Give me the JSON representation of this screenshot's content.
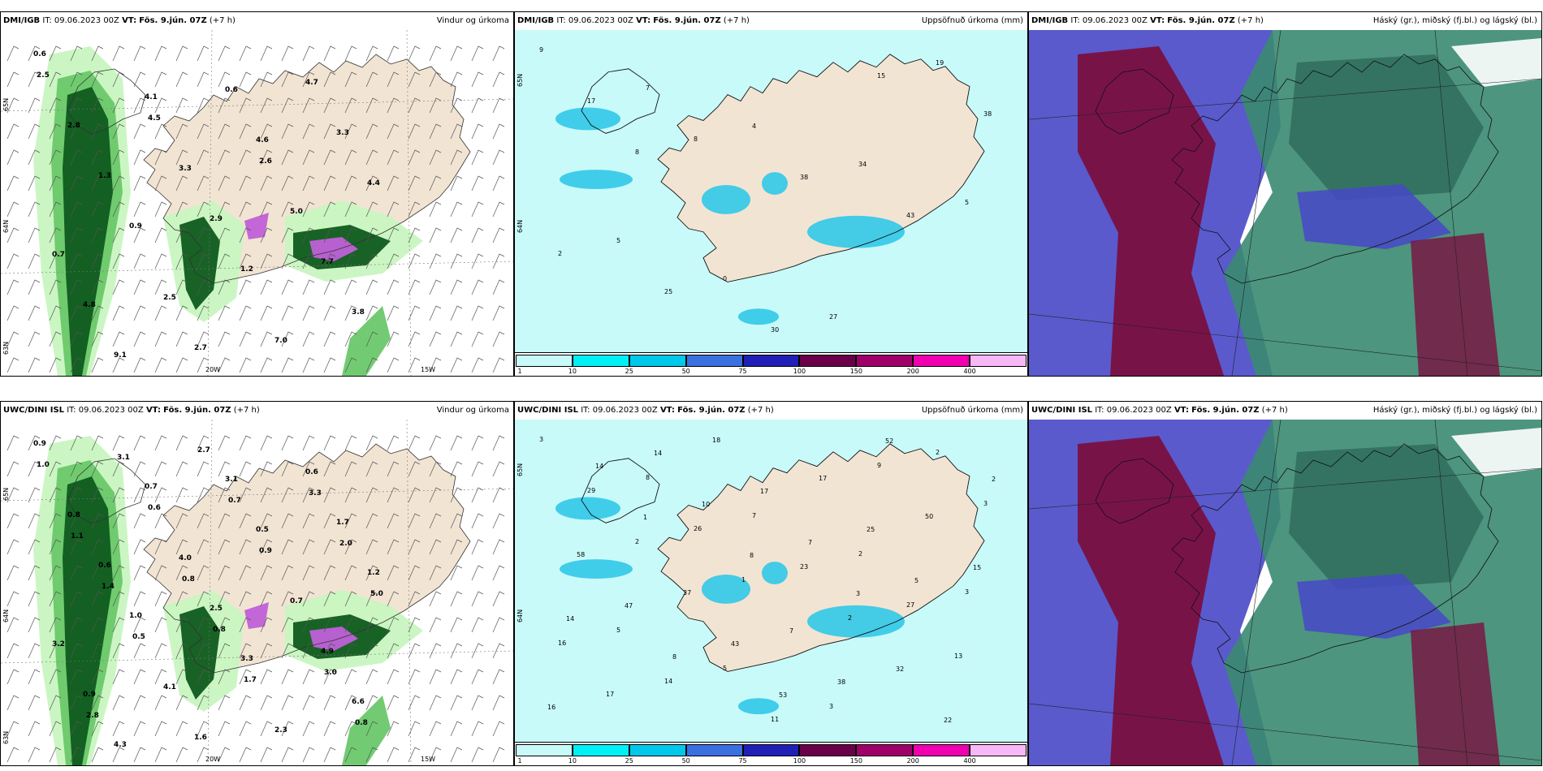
{
  "panels": [
    {
      "model": "DMI/IGB",
      "it": "IT: 09.06.2023 00Z",
      "vt_label": "VT:",
      "vt_value": "Fös. 9.jún. 07Z",
      "lead": "(+7 h)",
      "right_title": "Vindur og úrkoma",
      "type": "wind",
      "values": [
        "0.6",
        "4.1",
        "4.6",
        "4.4",
        "0.9",
        "1.2",
        "3.8",
        "9.1",
        "0.6",
        "3.3",
        "1.3",
        "2.9",
        "7.7",
        "4.8",
        "2.7",
        "4.7",
        "2.8",
        "3.3",
        "5.0",
        "0.7",
        "2.5",
        "7.0",
        "2.5",
        "4.5",
        "2.6"
      ],
      "lat_labels": [
        "65N",
        "64N",
        "63N"
      ],
      "lon_labels": [
        "20W",
        "15W"
      ]
    },
    {
      "model": "DMI/IGB",
      "it": "IT: 09.06.2023 00Z",
      "vt_label": "VT:",
      "vt_value": "Fös. 9.jún. 07Z",
      "lead": "(+7 h)",
      "right_title": "Uppsöfnuð úrkoma (mm)",
      "type": "precip",
      "values": [
        "9",
        "7",
        "4",
        "34",
        "5",
        "5",
        "0",
        "27",
        "19",
        "17",
        "8",
        "38",
        "43",
        "2",
        "25",
        "30",
        "15",
        "38",
        "8"
      ],
      "lat_labels": [
        "65N",
        "64N"
      ],
      "colorbar": [
        "1",
        "10",
        "25",
        "50",
        "75",
        "100",
        "150",
        "200",
        "400"
      ]
    },
    {
      "model": "DMI/IGB",
      "it": "IT: 09.06.2023 00Z",
      "vt_label": "VT:",
      "vt_value": "Fös. 9.jún. 07Z",
      "lead": "(+7 h)",
      "right_title": "Háský (gr.), miðský (fj.bl.) og lágský (bl.)",
      "type": "cloud"
    },
    {
      "model": "UWC/DINI ISL",
      "it": "IT: 09.06.2023 00Z",
      "vt_label": "VT:",
      "vt_value": "Fös. 9.jún. 07Z",
      "lead": "(+7 h)",
      "right_title": "Vindur og úrkoma",
      "type": "wind",
      "values": [
        "0.9",
        "0.7",
        "0.5",
        "1.2",
        "1.0",
        "3.3",
        "6.6",
        "4.3",
        "3.1",
        "1.7",
        "0.6",
        "2.5",
        "4.9",
        "0.9",
        "1.6",
        "0.6",
        "0.8",
        "4.0",
        "0.7",
        "3.2",
        "4.1",
        "2.3",
        "1.0",
        "0.6",
        "0.9",
        "5.0",
        "0.5",
        "1.7",
        "0.8",
        "3.1",
        "0.7",
        "2.0",
        "1.4",
        "0.8",
        "3.0",
        "2.8",
        "2.7",
        "3.3",
        "1.1",
        "0.8"
      ],
      "lat_labels": [
        "65N",
        "64N",
        "63N"
      ],
      "lon_labels": [
        "20W",
        "15W"
      ]
    },
    {
      "model": "UWC/DINI ISL",
      "it": "IT: 09.06.2023 00Z",
      "vt_label": "VT:",
      "vt_value": "Fös. 9.jún. 07Z",
      "lead": "(+7 h)",
      "right_title": "Uppsöfnuð úrkoma (mm)",
      "type": "precip",
      "values": [
        "3",
        "8",
        "7",
        "2",
        "3",
        "5",
        "5",
        "3",
        "2",
        "29",
        "26",
        "23",
        "27",
        "16",
        "14",
        "11",
        "9",
        "3",
        "2",
        "1",
        "2",
        "13",
        "17",
        "18",
        "17",
        "50",
        "58",
        "37",
        "7",
        "32",
        "16",
        "14",
        "17",
        "25",
        "15",
        "47",
        "43",
        "38",
        "22",
        "14",
        "10",
        "7",
        "5",
        "14",
        "8",
        "53",
        "52",
        "2",
        "1",
        "8",
        "3"
      ],
      "lat_labels": [
        "65N",
        "64N"
      ],
      "colorbar": [
        "1",
        "10",
        "25",
        "50",
        "75",
        "100",
        "150",
        "200",
        "400"
      ]
    },
    {
      "model": "UWC/DINI ISL",
      "it": "IT: 09.06.2023 00Z",
      "vt_label": "VT:",
      "vt_value": "Fös. 9.jún. 07Z",
      "lead": "(+7 h)",
      "right_title": "Háský (gr.), miðský (fj.bl.) og lágský (bl.)",
      "type": "cloud"
    }
  ],
  "colors": {
    "land": "#f2e4d3",
    "sea_precip": "#c8fafa",
    "precip_cyan": "#00e5ee",
    "precip_mid": "#31c8e8",
    "wind_light": "#c8f5c0",
    "wind_mid": "#6ac86a",
    "wind_dark": "#0e5a1e",
    "wind_purple": "#c060d8",
    "cloud_high": "#3a8a70",
    "cloud_mid": "#7a1040",
    "cloud_low": "#4848c8"
  },
  "colorbar_colors": [
    "#c8fafa",
    "#00f0f5",
    "#00c8ea",
    "#3a70e0",
    "#2020b8",
    "#6a004a",
    "#a0006a",
    "#f000b0",
    "#f8b8f8"
  ]
}
